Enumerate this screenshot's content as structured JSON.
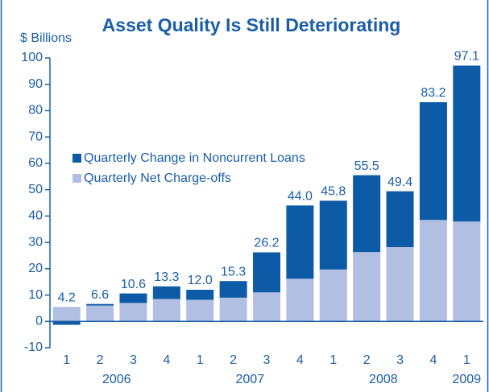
{
  "chart_data": {
    "type": "stacked_bar",
    "title": "Asset Quality Is Still Deteriorating",
    "y_axis_label": "$ Billions",
    "categories": [
      "1",
      "2",
      "3",
      "4",
      "1",
      "2",
      "3",
      "4",
      "1",
      "2",
      "3",
      "4",
      "1"
    ],
    "groups": [
      "2006",
      "2007",
      "2008",
      "2009"
    ],
    "series": [
      {
        "name": "Quarterly Net Charge-offs",
        "color": "#b1bfe2",
        "values": [
          5.5,
          6.0,
          7.0,
          8.5,
          8.2,
          9.0,
          11.0,
          16.2,
          19.7,
          26.3,
          28.2,
          38.5,
          37.9
        ]
      },
      {
        "name": "Quarterly Change in Noncurrent Loans",
        "color": "#0d5aa7",
        "values": [
          -1.3,
          0.6,
          3.6,
          4.8,
          3.8,
          6.3,
          15.2,
          27.8,
          26.1,
          29.2,
          21.2,
          44.7,
          59.2
        ]
      }
    ],
    "totals": [
      4.2,
      6.6,
      10.6,
      13.3,
      12.0,
      15.3,
      26.2,
      44.0,
      45.8,
      55.5,
      49.4,
      83.2,
      97.1
    ],
    "total_labels": [
      "4.2",
      "6.6",
      "10.6",
      "13.3",
      "12.0",
      "15.3",
      "26.2",
      "44.0",
      "45.8",
      "55.5",
      "49.4",
      "83.2",
      "97.1"
    ],
    "ylim": [
      -10,
      100
    ],
    "yticks": [
      -10,
      0,
      10,
      20,
      30,
      40,
      50,
      60,
      70,
      80,
      90,
      100
    ],
    "legend": "upper left"
  }
}
